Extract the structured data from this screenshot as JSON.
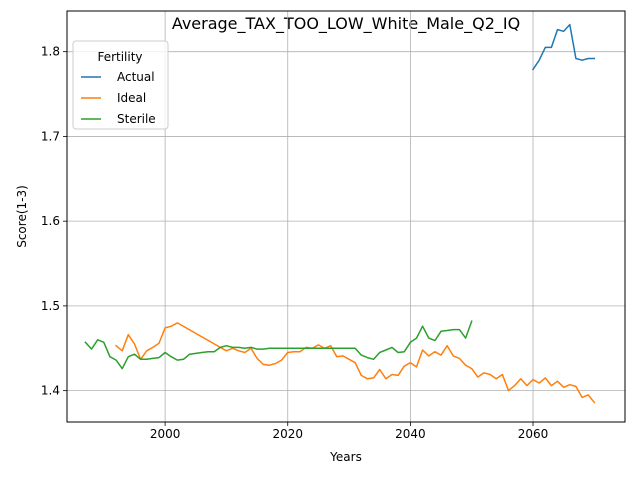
{
  "chart_data": {
    "type": "line",
    "title": "Average_TAX_TOO_LOW_White_Male_Q2_IQ",
    "xlabel": "Years",
    "ylabel": "Score(1-3)",
    "xlim": [
      1984,
      2075
    ],
    "ylim": [
      1.363,
      1.848
    ],
    "xticks": [
      2000,
      2020,
      2040,
      2060
    ],
    "yticks": [
      1.4,
      1.5,
      1.6,
      1.7,
      1.8
    ],
    "grid": true,
    "legend": {
      "title": "Fertility",
      "position": "top-left"
    },
    "series": [
      {
        "name": "Actual",
        "color": "#1f77b4",
        "points": [
          [
            2060,
            1.779
          ],
          [
            2061,
            1.79
          ],
          [
            2062,
            1.805
          ],
          [
            2063,
            1.805
          ],
          [
            2064,
            1.826
          ],
          [
            2065,
            1.824
          ],
          [
            2066,
            1.832
          ],
          [
            2067,
            1.792
          ],
          [
            2068,
            1.79
          ],
          [
            2069,
            1.792
          ],
          [
            2070,
            1.792
          ]
        ]
      },
      {
        "name": "Ideal",
        "color": "#ff7f0e",
        "points": [
          [
            1992,
            1.453
          ],
          [
            1993,
            1.447
          ],
          [
            1994,
            1.466
          ],
          [
            1995,
            1.455
          ],
          [
            1996,
            1.437
          ],
          [
            1997,
            1.447
          ],
          [
            1998,
            1.451
          ],
          [
            1999,
            1.456
          ],
          [
            2000,
            1.474
          ],
          [
            2001,
            1.476
          ],
          [
            2002,
            1.48
          ],
          [
            2009,
            1.451
          ],
          [
            2010,
            1.447
          ],
          [
            2011,
            1.45
          ],
          [
            2012,
            1.447
          ],
          [
            2013,
            1.445
          ],
          [
            2014,
            1.45
          ],
          [
            2015,
            1.438
          ],
          [
            2016,
            1.431
          ],
          [
            2017,
            1.43
          ],
          [
            2018,
            1.432
          ],
          [
            2019,
            1.436
          ],
          [
            2020,
            1.445
          ],
          [
            2021,
            1.446
          ],
          [
            2022,
            1.446
          ],
          [
            2023,
            1.451
          ],
          [
            2024,
            1.45
          ],
          [
            2025,
            1.454
          ],
          [
            2026,
            1.45
          ],
          [
            2027,
            1.453
          ],
          [
            2028,
            1.44
          ],
          [
            2029,
            1.441
          ],
          [
            2030,
            1.437
          ],
          [
            2031,
            1.433
          ],
          [
            2032,
            1.418
          ],
          [
            2033,
            1.414
          ],
          [
            2034,
            1.415
          ],
          [
            2035,
            1.425
          ],
          [
            2036,
            1.414
          ],
          [
            2037,
            1.419
          ],
          [
            2038,
            1.418
          ],
          [
            2039,
            1.429
          ],
          [
            2040,
            1.433
          ],
          [
            2041,
            1.428
          ],
          [
            2042,
            1.448
          ],
          [
            2043,
            1.441
          ],
          [
            2044,
            1.446
          ],
          [
            2045,
            1.442
          ],
          [
            2046,
            1.453
          ],
          [
            2047,
            1.441
          ],
          [
            2048,
            1.438
          ],
          [
            2049,
            1.43
          ],
          [
            2050,
            1.426
          ],
          [
            2051,
            1.416
          ],
          [
            2052,
            1.421
          ],
          [
            2053,
            1.419
          ],
          [
            2054,
            1.414
          ],
          [
            2055,
            1.419
          ],
          [
            2056,
            1.4
          ],
          [
            2057,
            1.406
          ],
          [
            2058,
            1.414
          ],
          [
            2059,
            1.406
          ],
          [
            2060,
            1.413
          ],
          [
            2061,
            1.409
          ],
          [
            2062,
            1.415
          ],
          [
            2063,
            1.406
          ],
          [
            2064,
            1.411
          ],
          [
            2065,
            1.404
          ],
          [
            2066,
            1.407
          ],
          [
            2067,
            1.405
          ],
          [
            2068,
            1.392
          ],
          [
            2069,
            1.395
          ],
          [
            2070,
            1.386
          ]
        ]
      },
      {
        "name": "Sterile",
        "color": "#2ca02c",
        "points": [
          [
            1987,
            1.457
          ],
          [
            1988,
            1.449
          ],
          [
            1989,
            1.46
          ],
          [
            1990,
            1.457
          ],
          [
            1991,
            1.44
          ],
          [
            1992,
            1.436
          ],
          [
            1993,
            1.426
          ],
          [
            1994,
            1.44
          ],
          [
            1995,
            1.443
          ],
          [
            1996,
            1.437
          ],
          [
            1997,
            1.437
          ],
          [
            1998,
            1.438
          ],
          [
            1999,
            1.439
          ],
          [
            2000,
            1.445
          ],
          [
            2001,
            1.44
          ],
          [
            2002,
            1.436
          ],
          [
            2003,
            1.437
          ],
          [
            2004,
            1.443
          ],
          [
            2005,
            1.444
          ],
          [
            2006,
            1.445
          ],
          [
            2007,
            1.446
          ],
          [
            2008,
            1.446
          ],
          [
            2009,
            1.451
          ],
          [
            2010,
            1.453
          ],
          [
            2011,
            1.451
          ],
          [
            2012,
            1.451
          ],
          [
            2013,
            1.45
          ],
          [
            2014,
            1.451
          ],
          [
            2015,
            1.449
          ],
          [
            2016,
            1.449
          ],
          [
            2017,
            1.45
          ],
          [
            2018,
            1.45
          ],
          [
            2019,
            1.45
          ],
          [
            2020,
            1.45
          ],
          [
            2021,
            1.45
          ],
          [
            2022,
            1.45
          ],
          [
            2023,
            1.45
          ],
          [
            2024,
            1.45
          ],
          [
            2025,
            1.45
          ],
          [
            2026,
            1.45
          ],
          [
            2027,
            1.45
          ],
          [
            2028,
            1.45
          ],
          [
            2029,
            1.45
          ],
          [
            2030,
            1.45
          ],
          [
            2031,
            1.45
          ],
          [
            2032,
            1.442
          ],
          [
            2033,
            1.439
          ],
          [
            2034,
            1.437
          ],
          [
            2035,
            1.445
          ],
          [
            2036,
            1.448
          ],
          [
            2037,
            1.451
          ],
          [
            2038,
            1.445
          ],
          [
            2039,
            1.446
          ],
          [
            2040,
            1.457
          ],
          [
            2041,
            1.462
          ],
          [
            2042,
            1.476
          ],
          [
            2043,
            1.462
          ],
          [
            2044,
            1.459
          ],
          [
            2045,
            1.47
          ],
          [
            2046,
            1.471
          ],
          [
            2047,
            1.472
          ],
          [
            2048,
            1.472
          ],
          [
            2049,
            1.462
          ],
          [
            2050,
            1.482
          ]
        ]
      }
    ]
  }
}
